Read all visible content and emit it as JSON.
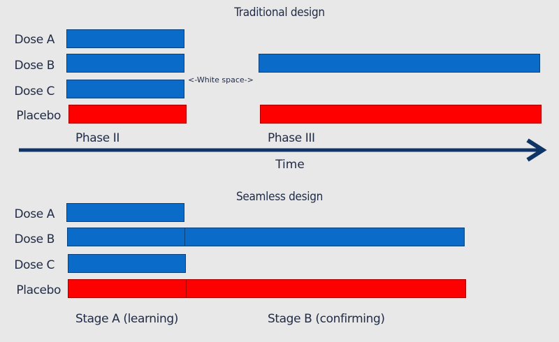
{
  "traditional": {
    "title": "Traditional design",
    "rows": [
      {
        "label": "Dose A"
      },
      {
        "label": "Dose B"
      },
      {
        "label": "Dose C"
      },
      {
        "label": "Placebo"
      }
    ],
    "white_space_note": "<-White space->",
    "phase_labels": [
      "Phase II",
      "Phase III"
    ]
  },
  "time_label": "Time",
  "seamless": {
    "title": "Seamless design",
    "rows": [
      {
        "label": "Dose A"
      },
      {
        "label": "Dose B"
      },
      {
        "label": "Dose C"
      },
      {
        "label": "Placebo"
      }
    ],
    "stage_labels": [
      "Stage A (learning)",
      "Stage B (confirming)"
    ]
  },
  "colors": {
    "dose_bar": "#0b6bc9",
    "placebo_bar": "#ff0000",
    "arrow": "#0f3466",
    "text": "#1f2a44",
    "background": "#e8e8e8"
  }
}
